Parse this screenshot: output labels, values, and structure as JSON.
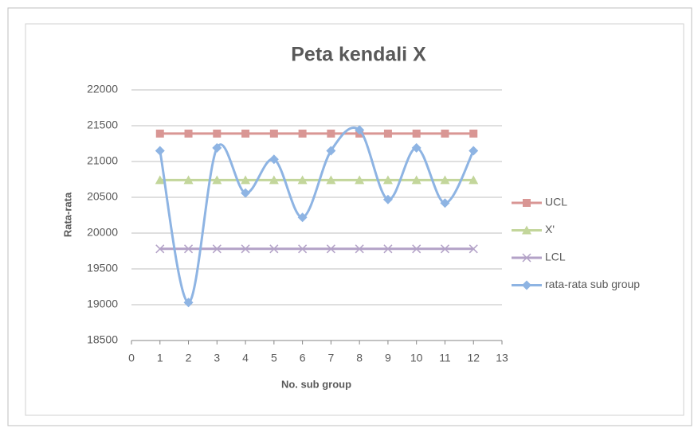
{
  "chart_data": {
    "type": "line",
    "title": "Peta kendali X",
    "x_label": "No. sub group",
    "y_label": "Rata-rata",
    "x": [
      1,
      2,
      3,
      4,
      5,
      6,
      7,
      8,
      9,
      10,
      11,
      12
    ],
    "series": [
      {
        "name": "UCL",
        "color": "#d99694",
        "marker": "square",
        "smooth": false,
        "values": [
          21390,
          21390,
          21390,
          21390,
          21390,
          21390,
          21390,
          21390,
          21390,
          21390,
          21390,
          21390
        ]
      },
      {
        "name": "X'",
        "color": "#c3d69b",
        "marker": "triangle",
        "smooth": false,
        "values": [
          20740,
          20740,
          20740,
          20740,
          20740,
          20740,
          20740,
          20740,
          20740,
          20740,
          20740,
          20740
        ]
      },
      {
        "name": "LCL",
        "color": "#b3a2c7",
        "marker": "cross",
        "smooth": false,
        "values": [
          19780,
          19780,
          19780,
          19780,
          19780,
          19780,
          19780,
          19780,
          19780,
          19780,
          19780,
          19780
        ]
      },
      {
        "name": "rata-rata sub group",
        "color": "#8eb4e3",
        "marker": "diamond",
        "smooth": true,
        "values": [
          21150,
          19030,
          21190,
          20560,
          21030,
          20220,
          21150,
          21440,
          20470,
          21190,
          20420,
          21150
        ]
      }
    ],
    "xlim": [
      0,
      13
    ],
    "xticks": [
      0,
      1,
      2,
      3,
      4,
      5,
      6,
      7,
      8,
      9,
      10,
      11,
      12,
      13
    ],
    "ylim": [
      18500,
      22000
    ],
    "yticks": [
      18500,
      19000,
      19500,
      20000,
      20500,
      21000,
      21500,
      22000
    ],
    "grid": true,
    "legend": "right"
  }
}
